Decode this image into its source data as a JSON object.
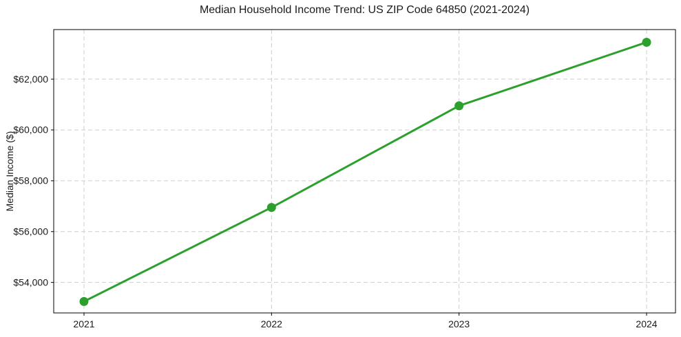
{
  "chart_data": {
    "type": "line",
    "title": "Median Household Income Trend: US ZIP Code 64850 (2021-2024)",
    "xlabel": "",
    "ylabel": "Median Income ($)",
    "x": [
      2021,
      2022,
      2023,
      2024
    ],
    "x_tick_labels": [
      "2021",
      "2022",
      "2023",
      "2024"
    ],
    "series": [
      {
        "name": "Median Household Income",
        "values": [
          53250,
          56950,
          60950,
          63450
        ]
      }
    ],
    "y_ticks": [
      54000,
      56000,
      58000,
      60000,
      62000
    ],
    "y_tick_labels": [
      "$54,000",
      "$56,000",
      "$58,000",
      "$60,000",
      "$62,000"
    ],
    "ylim": [
      52800,
      63950
    ],
    "grid": true,
    "grid_style": "dashed",
    "legend": "none",
    "colors": {
      "line": "#2ca02c",
      "marker": "#2ca02c",
      "grid": "#cdcdcd",
      "spine": "#000000",
      "text": "#1a1a1a",
      "background": "#ffffff"
    }
  }
}
